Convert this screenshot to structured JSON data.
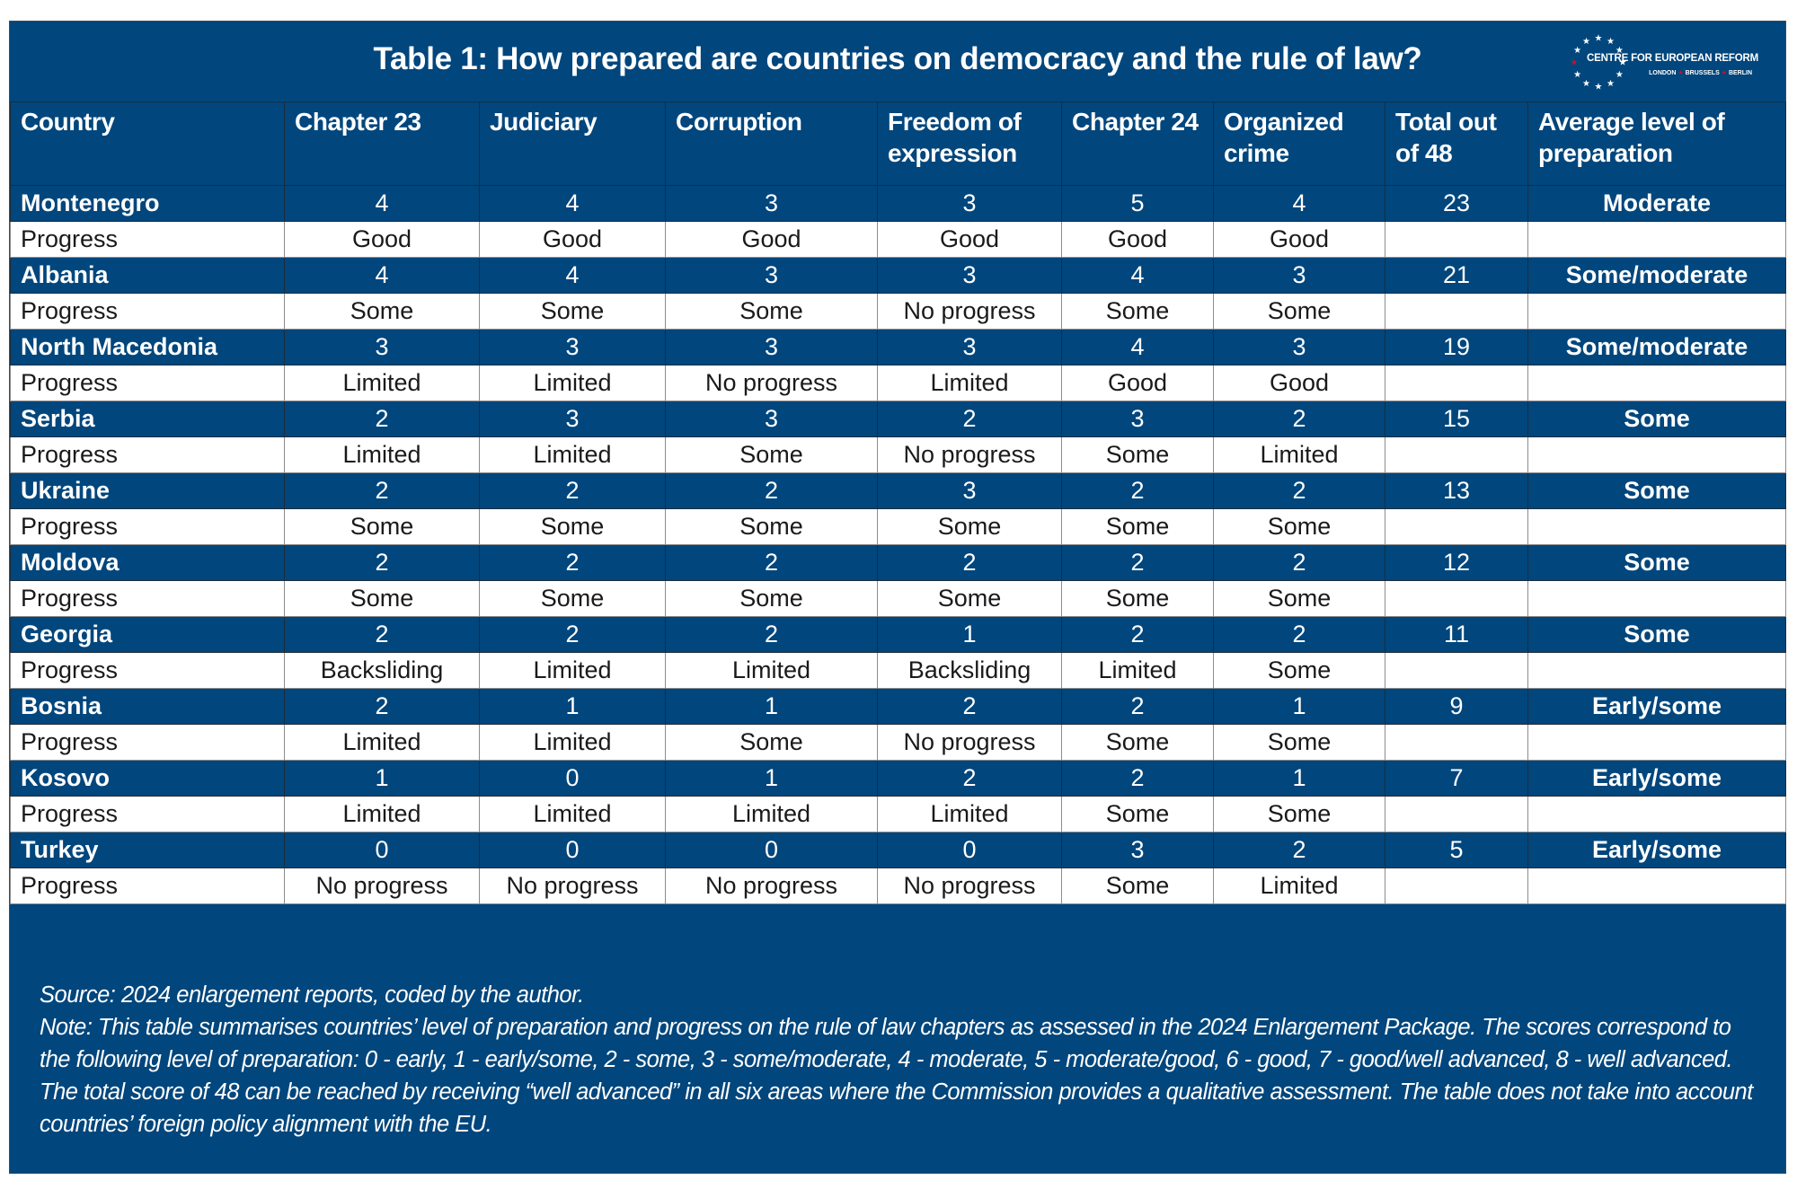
{
  "title": "Table 1: How prepared are countries on democracy and the rule of law?",
  "logo": {
    "name": "CENTRE FOR EUROPEAN REFORM",
    "cities": [
      "LONDON",
      "BRUSSELS",
      "BERLIN"
    ],
    "icon": "eu-stars-circle-icon"
  },
  "colors": {
    "brand_blue": "#01467c",
    "logo_star_red": "#c8102e"
  },
  "columns": [
    "Country",
    "Chapter 23",
    "Judiciary",
    "Corruption",
    "Freedom of expression",
    "Chapter 24",
    "Organized crime",
    "Total out of 48",
    "Average level of preparation"
  ],
  "progress_label": "Progress",
  "rows": [
    {
      "country": "Montenegro",
      "scores": [
        "4",
        "4",
        "3",
        "3",
        "5",
        "4"
      ],
      "total": "23",
      "level": "Moderate",
      "progress": [
        "Good",
        "Good",
        "Good",
        "Good",
        "Good",
        "Good"
      ]
    },
    {
      "country": "Albania",
      "scores": [
        "4",
        "4",
        "3",
        "3",
        "4",
        "3"
      ],
      "total": "21",
      "level": "Some/moderate",
      "progress": [
        "Some",
        "Some",
        "Some",
        "No progress",
        "Some",
        "Some"
      ]
    },
    {
      "country": "North Macedonia",
      "scores": [
        "3",
        "3",
        "3",
        "3",
        "4",
        "3"
      ],
      "total": "19",
      "level": "Some/moderate",
      "progress": [
        "Limited",
        "Limited",
        "No progress",
        "Limited",
        "Good",
        "Good"
      ]
    },
    {
      "country": "Serbia",
      "scores": [
        "2",
        "3",
        "3",
        "2",
        "3",
        "2"
      ],
      "total": "15",
      "level": "Some",
      "progress": [
        "Limited",
        "Limited",
        "Some",
        "No progress",
        "Some",
        "Limited"
      ]
    },
    {
      "country": "Ukraine",
      "scores": [
        "2",
        "2",
        "2",
        "3",
        "2",
        "2"
      ],
      "total": "13",
      "level": "Some",
      "progress": [
        "Some",
        "Some",
        "Some",
        "Some",
        "Some",
        "Some"
      ]
    },
    {
      "country": "Moldova",
      "scores": [
        "2",
        "2",
        "2",
        "2",
        "2",
        "2"
      ],
      "total": "12",
      "level": "Some",
      "progress": [
        "Some",
        "Some",
        "Some",
        "Some",
        "Some",
        "Some"
      ]
    },
    {
      "country": "Georgia",
      "scores": [
        "2",
        "2",
        "2",
        "1",
        "2",
        "2"
      ],
      "total": "11",
      "level": "Some",
      "progress": [
        "Backsliding",
        "Limited",
        "Limited",
        "Backsliding",
        "Limited",
        "Some"
      ]
    },
    {
      "country": "Bosnia",
      "scores": [
        "2",
        "1",
        "1",
        "2",
        "2",
        "1"
      ],
      "total": "9",
      "level": "Early/some",
      "progress": [
        "Limited",
        "Limited",
        "Some",
        "No progress",
        "Some",
        "Some"
      ]
    },
    {
      "country": "Kosovo",
      "scores": [
        "1",
        "0",
        "1",
        "2",
        "2",
        "1"
      ],
      "total": "7",
      "level": "Early/some",
      "progress": [
        "Limited",
        "Limited",
        "Limited",
        "Limited",
        "Some",
        "Some"
      ]
    },
    {
      "country": "Turkey",
      "scores": [
        "0",
        "0",
        "0",
        "0",
        "3",
        "2"
      ],
      "total": "5",
      "level": "Early/some",
      "progress": [
        "No progress",
        "No progress",
        "No progress",
        "No progress",
        "Some",
        "Limited"
      ]
    }
  ],
  "footer": {
    "source": "Source: 2024 enlargement reports, coded by the author.",
    "note": "Note: This table summarises countries’ level of preparation and progress on the rule of law chapters as assessed in the 2024 Enlargement Package. The scores correspond to the following level of preparation: 0 - early, 1 - early/some, 2 - some, 3 - some/moderate, 4 - moderate, 5 - moderate/good, 6 - good, 7 - good/well advanced, 8 - well advanced. The total score of 48 can be reached by receiving “well advanced” in all six areas  where the Commission provides a qualitative assessment. The table does not take into account countries’ foreign policy alignment with the EU."
  }
}
